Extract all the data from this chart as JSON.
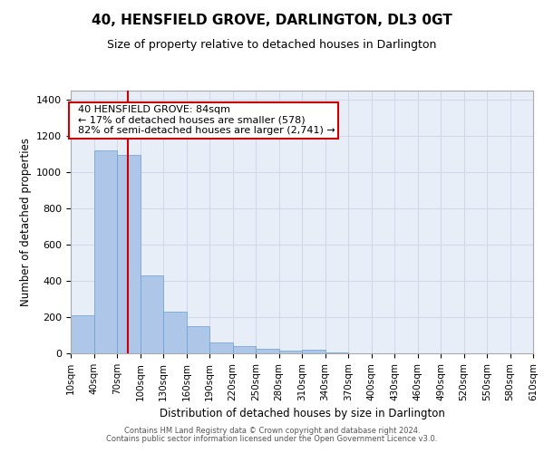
{
  "title": "40, HENSFIELD GROVE, DARLINGTON, DL3 0GT",
  "subtitle": "Size of property relative to detached houses in Darlington",
  "xlabel": "Distribution of detached houses by size in Darlington",
  "ylabel": "Number of detached properties",
  "bar_color": "#aec6e8",
  "bar_edge_color": "#6a9fd0",
  "grid_color": "#d0d8e8",
  "bg_color": "#e8eef8",
  "vline_color": "#cc0000",
  "vline_x": 84,
  "annotation_text": "  40 HENSFIELD GROVE: 84sqm\n  ← 17% of detached houses are smaller (578)\n  82% of semi-detached houses are larger (2,741) →",
  "annotation_box_color": "#cc0000",
  "bins": [
    10,
    40,
    70,
    100,
    130,
    160,
    190,
    220,
    250,
    280,
    310,
    340,
    370,
    400,
    430,
    460,
    490,
    520,
    550,
    580,
    610
  ],
  "bin_labels": [
    "10sqm",
    "40sqm",
    "70sqm",
    "100sqm",
    "130sqm",
    "160sqm",
    "190sqm",
    "220sqm",
    "250sqm",
    "280sqm",
    "310sqm",
    "340sqm",
    "370sqm",
    "400sqm",
    "430sqm",
    "460sqm",
    "490sqm",
    "520sqm",
    "550sqm",
    "580sqm",
    "610sqm"
  ],
  "bar_heights": [
    210,
    1120,
    1095,
    430,
    232,
    150,
    58,
    38,
    25,
    15,
    20,
    5,
    0,
    0,
    0,
    0,
    0,
    0,
    0,
    0
  ],
  "ylim": [
    0,
    1450
  ],
  "yticks": [
    0,
    200,
    400,
    600,
    800,
    1000,
    1200,
    1400
  ],
  "footer1": "Contains HM Land Registry data © Crown copyright and database right 2024.",
  "footer2": "Contains public sector information licensed under the Open Government Licence v3.0."
}
